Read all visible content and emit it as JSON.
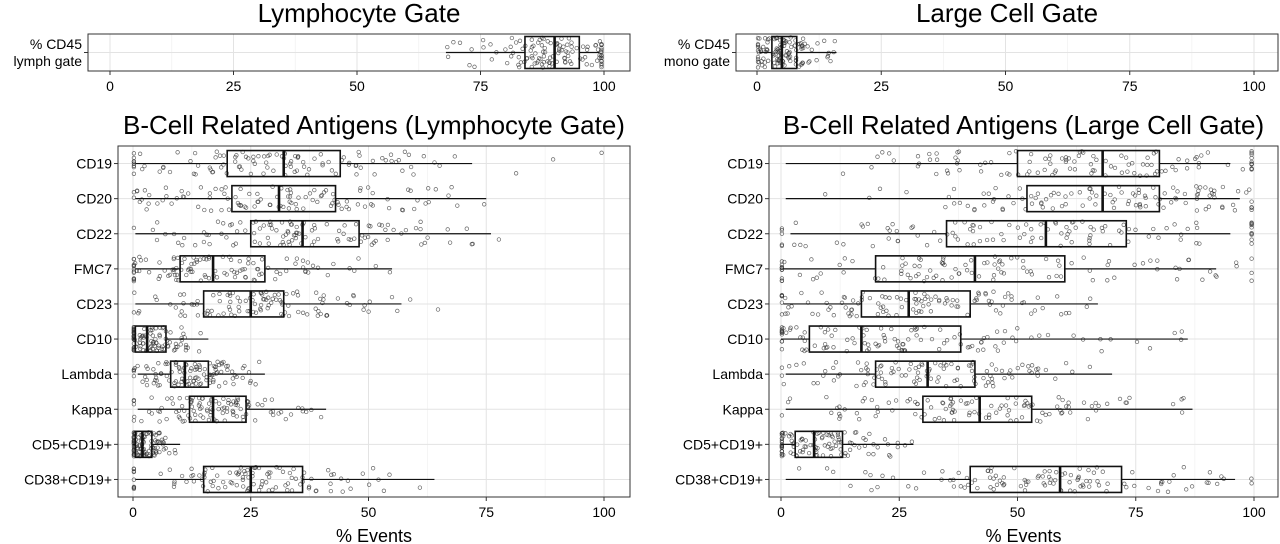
{
  "chart_data": [
    {
      "type": "boxplot",
      "title": "Lymphocyte Gate",
      "xlabel": "",
      "xlim": [
        0,
        100
      ],
      "xticks": [
        0,
        25,
        50,
        75,
        100
      ],
      "categories": [
        "% CD45\nlymph gate"
      ],
      "boxes": [
        {
          "category": "% CD45 lymph gate",
          "q1": 84,
          "median": 90,
          "q3": 95,
          "whisker_low": 68,
          "whisker_high": 99
        }
      ],
      "grid": true
    },
    {
      "type": "boxplot",
      "title": "Large Cell Gate",
      "xlabel": "",
      "xlim": [
        0,
        100
      ],
      "xticks": [
        0,
        25,
        50,
        75,
        100
      ],
      "categories": [
        "% CD45\nmono gate"
      ],
      "boxes": [
        {
          "category": "% CD45 mono gate",
          "q1": 3,
          "median": 5,
          "q3": 8,
          "whisker_low": 0.5,
          "whisker_high": 16
        }
      ],
      "grid": true
    },
    {
      "type": "boxplot",
      "title": "B-Cell Related Antigens (Lymphocyte Gate)",
      "xlabel": "% Events",
      "xlim": [
        0,
        100
      ],
      "xticks": [
        0,
        25,
        50,
        75,
        100
      ],
      "categories": [
        "CD19",
        "CD20",
        "CD22",
        "FMC7",
        "CD23",
        "CD10",
        "Lambda",
        "Kappa",
        "CD5+CD19+",
        "CD38+CD19+"
      ],
      "boxes": [
        {
          "category": "CD19",
          "q1": 20,
          "median": 32,
          "q3": 44,
          "whisker_low": 0.5,
          "whisker_high": 72
        },
        {
          "category": "CD20",
          "q1": 21,
          "median": 31,
          "q3": 43,
          "whisker_low": 0.5,
          "whisker_high": 75
        },
        {
          "category": "CD22",
          "q1": 25,
          "median": 36,
          "q3": 48,
          "whisker_low": 0.5,
          "whisker_high": 76
        },
        {
          "category": "FMC7",
          "q1": 10,
          "median": 17,
          "q3": 28,
          "whisker_low": 0.5,
          "whisker_high": 55
        },
        {
          "category": "CD23",
          "q1": 15,
          "median": 25,
          "q3": 32,
          "whisker_low": 0.5,
          "whisker_high": 57
        },
        {
          "category": "CD10",
          "q1": 0.5,
          "median": 3,
          "q3": 7,
          "whisker_low": 0,
          "whisker_high": 16
        },
        {
          "category": "Lambda",
          "q1": 8,
          "median": 11,
          "q3": 16,
          "whisker_low": 1,
          "whisker_high": 28
        },
        {
          "category": "Kappa",
          "q1": 12,
          "median": 17,
          "q3": 24,
          "whisker_low": 1,
          "whisker_high": 41
        },
        {
          "category": "CD5+CD19+",
          "q1": 0.5,
          "median": 2,
          "q3": 4,
          "whisker_low": 0,
          "whisker_high": 10
        },
        {
          "category": "CD38+CD19+",
          "q1": 15,
          "median": 25,
          "q3": 36,
          "whisker_low": 0.5,
          "whisker_high": 64
        }
      ],
      "grid": true
    },
    {
      "type": "boxplot",
      "title": "B-Cell Related Antigens (Large Cell Gate)",
      "xlabel": "% Events",
      "xlim": [
        0,
        100
      ],
      "xticks": [
        0,
        25,
        50,
        75,
        100
      ],
      "categories": [
        "CD19",
        "CD20",
        "CD22",
        "FMC7",
        "CD23",
        "CD10",
        "Lambda",
        "Kappa",
        "CD5+CD19+",
        "CD38+CD19+"
      ],
      "boxes": [
        {
          "category": "CD19",
          "q1": 50,
          "median": 68,
          "q3": 80,
          "whisker_low": 1,
          "whisker_high": 95
        },
        {
          "category": "CD20",
          "q1": 52,
          "median": 68,
          "q3": 80,
          "whisker_low": 1,
          "whisker_high": 97
        },
        {
          "category": "CD22",
          "q1": 35,
          "median": 56,
          "q3": 73,
          "whisker_low": 2,
          "whisker_high": 95
        },
        {
          "category": "FMC7",
          "q1": 20,
          "median": 41,
          "q3": 60,
          "whisker_low": 0.5,
          "whisker_high": 92
        },
        {
          "category": "CD23",
          "q1": 17,
          "median": 27,
          "q3": 40,
          "whisker_low": 0.5,
          "whisker_high": 67
        },
        {
          "category": "CD10",
          "q1": 6,
          "median": 17,
          "q3": 38,
          "whisker_low": 0,
          "whisker_high": 86
        },
        {
          "category": "Lambda",
          "q1": 20,
          "median": 31,
          "q3": 41,
          "whisker_low": 1,
          "whisker_high": 70
        },
        {
          "category": "Kappa",
          "q1": 30,
          "median": 42,
          "q3": 53,
          "whisker_low": 1,
          "whisker_high": 87
        },
        {
          "category": "CD5+CD19+",
          "q1": 3,
          "median": 7,
          "q3": 13,
          "whisker_low": 0,
          "whisker_high": 28
        },
        {
          "category": "CD38+CD19+",
          "q1": 40,
          "median": 59,
          "q3": 72,
          "whisker_low": 1,
          "whisker_high": 96
        }
      ],
      "grid": true
    }
  ]
}
